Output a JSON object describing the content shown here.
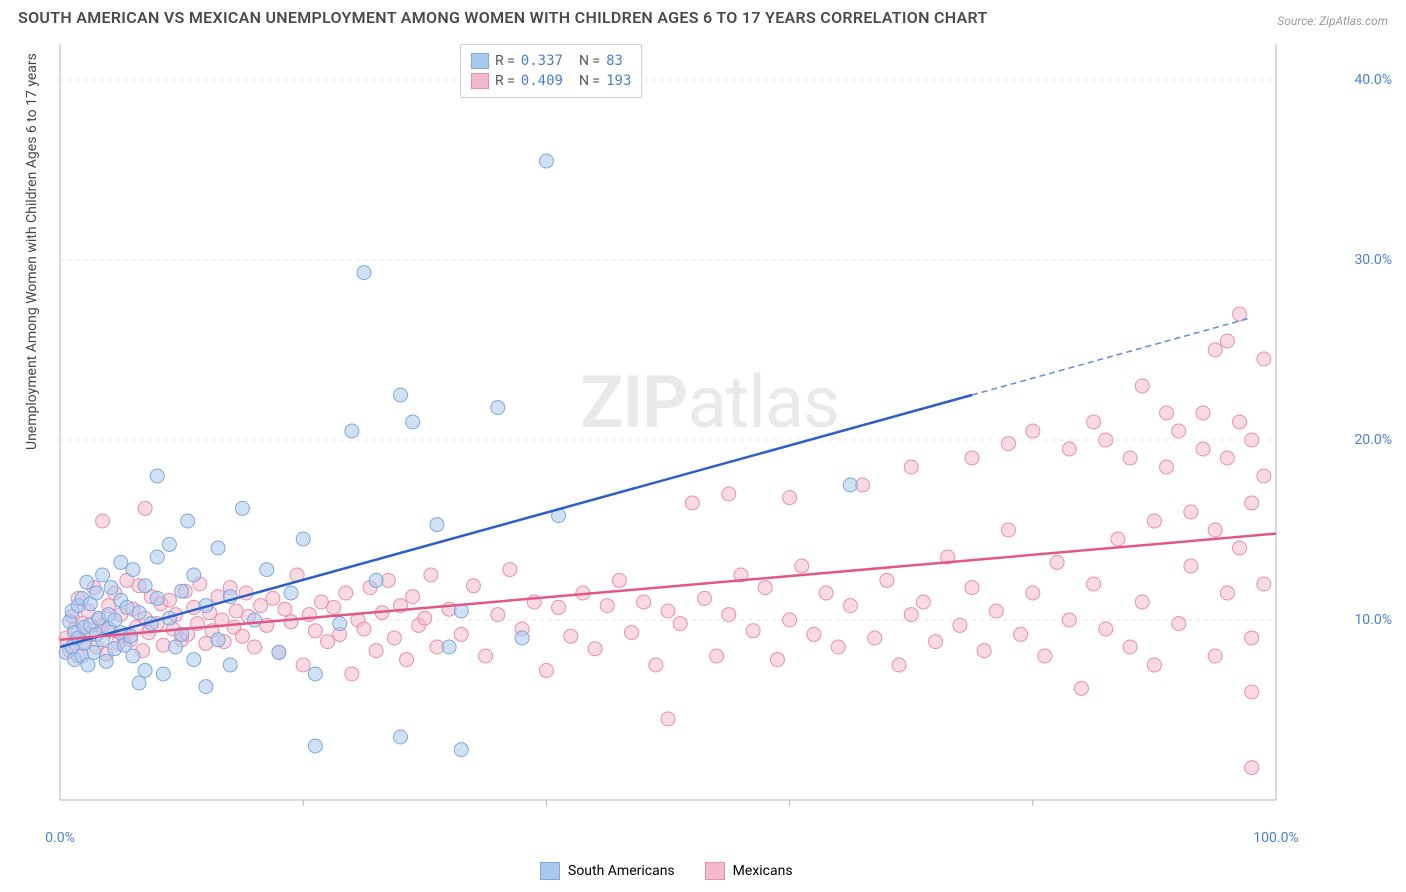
{
  "title": "SOUTH AMERICAN VS MEXICAN UNEMPLOYMENT AMONG WOMEN WITH CHILDREN AGES 6 TO 17 YEARS CORRELATION CHART",
  "source": "Source: ZipAtlas.com",
  "y_axis_label": "Unemployment Among Women with Children Ages 6 to 17 years",
  "watermark_a": "ZIP",
  "watermark_b": "atlas",
  "chart": {
    "type": "scatter",
    "xlim": [
      0,
      100
    ],
    "ylim": [
      0,
      42
    ],
    "x_ticks": [
      0,
      100
    ],
    "x_tick_labels": [
      "0.0%",
      "100.0%"
    ],
    "x_minor_ticks": [
      20,
      40,
      60,
      80
    ],
    "y_ticks": [
      10,
      20,
      30,
      40
    ],
    "y_tick_labels": [
      "10.0%",
      "20.0%",
      "30.0%",
      "40.0%"
    ],
    "background_color": "#ffffff",
    "grid_color": "#e5e5e5",
    "axis_color": "#b5b5b5",
    "tick_label_color": "#4a7fd6",
    "series": [
      {
        "name": "South Americans",
        "color_fill": "#a9c8ee",
        "color_stroke": "#7fa8dd",
        "marker_radius": 7,
        "fill_opacity": 0.55,
        "R": "0.337",
        "N": "83",
        "trend": {
          "x1": 0,
          "y1": 8.5,
          "x2": 75,
          "y2": 22.5,
          "color": "#2d5fc9",
          "width": 2.5
        },
        "trend_ext": {
          "x1": 75,
          "y1": 22.5,
          "x2": 98,
          "y2": 26.8,
          "color": "#5e8cd9"
        },
        "points": [
          [
            0.5,
            8.2
          ],
          [
            0.8,
            9.9
          ],
          [
            1,
            8.5
          ],
          [
            1,
            10.5
          ],
          [
            1.2,
            7.8
          ],
          [
            1.2,
            9.3
          ],
          [
            1.5,
            10.8
          ],
          [
            1.5,
            9.0
          ],
          [
            1.8,
            8.0
          ],
          [
            1.8,
            11.2
          ],
          [
            2,
            9.6
          ],
          [
            2,
            8.7
          ],
          [
            2.2,
            12.1
          ],
          [
            2.3,
            7.5
          ],
          [
            2.5,
            9.7
          ],
          [
            2.5,
            10.9
          ],
          [
            2.8,
            8.2
          ],
          [
            3,
            9.2
          ],
          [
            3,
            11.5
          ],
          [
            3.2,
            10.1
          ],
          [
            3.5,
            8.9
          ],
          [
            3.5,
            12.5
          ],
          [
            3.8,
            7.7
          ],
          [
            4,
            9.5
          ],
          [
            4,
            10.3
          ],
          [
            4.2,
            11.8
          ],
          [
            4.5,
            8.4
          ],
          [
            4.5,
            10.0
          ],
          [
            5,
            9.3
          ],
          [
            5,
            11.1
          ],
          [
            5,
            13.2
          ],
          [
            5.3,
            8.6
          ],
          [
            5.5,
            10.7
          ],
          [
            5.8,
            9.1
          ],
          [
            6,
            12.8
          ],
          [
            6,
            8.0
          ],
          [
            6.5,
            10.4
          ],
          [
            6.5,
            6.5
          ],
          [
            7,
            11.9
          ],
          [
            7,
            7.2
          ],
          [
            7.5,
            9.8
          ],
          [
            8,
            13.5
          ],
          [
            8,
            11.2
          ],
          [
            8,
            18.0
          ],
          [
            8.5,
            7.0
          ],
          [
            9,
            10.1
          ],
          [
            9,
            14.2
          ],
          [
            9.5,
            8.5
          ],
          [
            10,
            11.6
          ],
          [
            10,
            9.2
          ],
          [
            10.5,
            15.5
          ],
          [
            11,
            7.8
          ],
          [
            11,
            12.5
          ],
          [
            12,
            10.8
          ],
          [
            12,
            6.3
          ],
          [
            13,
            14.0
          ],
          [
            13,
            8.9
          ],
          [
            14,
            11.3
          ],
          [
            14,
            7.5
          ],
          [
            15,
            16.2
          ],
          [
            16,
            10.0
          ],
          [
            17,
            12.8
          ],
          [
            18,
            8.2
          ],
          [
            19,
            11.5
          ],
          [
            20,
            14.5
          ],
          [
            21,
            7.0
          ],
          [
            21,
            3.0
          ],
          [
            23,
            9.8
          ],
          [
            24,
            20.5
          ],
          [
            25,
            29.3
          ],
          [
            26,
            12.2
          ],
          [
            28,
            3.5
          ],
          [
            28,
            22.5
          ],
          [
            29,
            21.0
          ],
          [
            31,
            15.3
          ],
          [
            32,
            8.5
          ],
          [
            33,
            2.8
          ],
          [
            33,
            10.5
          ],
          [
            36,
            21.8
          ],
          [
            38,
            9.0
          ],
          [
            40,
            35.5
          ],
          [
            41,
            15.8
          ],
          [
            65,
            17.5
          ]
        ]
      },
      {
        "name": "Mexicans",
        "color_fill": "#f4b9ca",
        "color_stroke": "#e88fae",
        "marker_radius": 7,
        "fill_opacity": 0.55,
        "R": "0.409",
        "N": "193",
        "trend": {
          "x1": 0,
          "y1": 8.9,
          "x2": 100,
          "y2": 14.8,
          "color": "#e15788",
          "width": 2.5
        },
        "points": [
          [
            0.5,
            9.0
          ],
          [
            0.8,
            8.3
          ],
          [
            1,
            10.2
          ],
          [
            1.2,
            9.5
          ],
          [
            1.5,
            8.0
          ],
          [
            1.5,
            11.2
          ],
          [
            1.8,
            9.8
          ],
          [
            2,
            8.8
          ],
          [
            2.3,
            10.5
          ],
          [
            2.5,
            9.2
          ],
          [
            2.8,
            11.8
          ],
          [
            3,
            8.5
          ],
          [
            3.2,
            10.0
          ],
          [
            3.5,
            9.7
          ],
          [
            3.5,
            15.5
          ],
          [
            3.8,
            8.1
          ],
          [
            4,
            10.8
          ],
          [
            4.2,
            9.4
          ],
          [
            4.5,
            11.5
          ],
          [
            4.8,
            8.7
          ],
          [
            5,
            10.3
          ],
          [
            5.2,
            9.1
          ],
          [
            5.5,
            12.2
          ],
          [
            5.8,
            8.9
          ],
          [
            6,
            10.6
          ],
          [
            6.3,
            9.6
          ],
          [
            6.5,
            11.9
          ],
          [
            6.8,
            8.3
          ],
          [
            7,
            10.1
          ],
          [
            7,
            16.2
          ],
          [
            7.3,
            9.3
          ],
          [
            7.5,
            11.3
          ],
          [
            8,
            9.8
          ],
          [
            8.3,
            10.9
          ],
          [
            8.5,
            8.6
          ],
          [
            9,
            11.1
          ],
          [
            9.3,
            9.5
          ],
          [
            9.5,
            10.3
          ],
          [
            10,
            8.9
          ],
          [
            10.3,
            11.6
          ],
          [
            10.5,
            9.2
          ],
          [
            11,
            10.7
          ],
          [
            11.3,
            9.8
          ],
          [
            11.5,
            12.0
          ],
          [
            12,
            8.7
          ],
          [
            12.3,
            10.4
          ],
          [
            12.5,
            9.4
          ],
          [
            13,
            11.3
          ],
          [
            13.3,
            10.0
          ],
          [
            13.5,
            8.8
          ],
          [
            14,
            11.8
          ],
          [
            14.3,
            9.6
          ],
          [
            14.5,
            10.5
          ],
          [
            15,
            9.1
          ],
          [
            15.3,
            11.5
          ],
          [
            15.5,
            10.2
          ],
          [
            16,
            8.5
          ],
          [
            16.5,
            10.8
          ],
          [
            17,
            9.7
          ],
          [
            17.5,
            11.2
          ],
          [
            18,
            8.2
          ],
          [
            18.5,
            10.6
          ],
          [
            19,
            9.9
          ],
          [
            19.5,
            12.5
          ],
          [
            20,
            7.5
          ],
          [
            20.5,
            10.3
          ],
          [
            21,
            9.4
          ],
          [
            21.5,
            11.0
          ],
          [
            22,
            8.8
          ],
          [
            22.5,
            10.7
          ],
          [
            23,
            9.2
          ],
          [
            23.5,
            11.5
          ],
          [
            24,
            7.0
          ],
          [
            24.5,
            10.0
          ],
          [
            25,
            9.5
          ],
          [
            25.5,
            11.8
          ],
          [
            26,
            8.3
          ],
          [
            26.5,
            10.4
          ],
          [
            27,
            12.2
          ],
          [
            27.5,
            9.0
          ],
          [
            28,
            10.8
          ],
          [
            28.5,
            7.8
          ],
          [
            29,
            11.3
          ],
          [
            29.5,
            9.7
          ],
          [
            30,
            10.1
          ],
          [
            30.5,
            12.5
          ],
          [
            31,
            8.5
          ],
          [
            32,
            10.6
          ],
          [
            33,
            9.2
          ],
          [
            34,
            11.9
          ],
          [
            35,
            8.0
          ],
          [
            36,
            10.3
          ],
          [
            37,
            12.8
          ],
          [
            38,
            9.5
          ],
          [
            39,
            11.0
          ],
          [
            40,
            7.2
          ],
          [
            41,
            10.7
          ],
          [
            42,
            9.1
          ],
          [
            43,
            11.5
          ],
          [
            44,
            8.4
          ],
          [
            45,
            10.8
          ],
          [
            46,
            12.2
          ],
          [
            47,
            9.3
          ],
          [
            48,
            11.0
          ],
          [
            49,
            7.5
          ],
          [
            50,
            10.5
          ],
          [
            50,
            4.5
          ],
          [
            51,
            9.8
          ],
          [
            52,
            16.5
          ],
          [
            53,
            11.2
          ],
          [
            54,
            8.0
          ],
          [
            55,
            10.3
          ],
          [
            55,
            17.0
          ],
          [
            56,
            12.5
          ],
          [
            57,
            9.4
          ],
          [
            58,
            11.8
          ],
          [
            59,
            7.8
          ],
          [
            60,
            10.0
          ],
          [
            60,
            16.8
          ],
          [
            61,
            13.0
          ],
          [
            62,
            9.2
          ],
          [
            63,
            11.5
          ],
          [
            64,
            8.5
          ],
          [
            65,
            10.8
          ],
          [
            66,
            17.5
          ],
          [
            67,
            9.0
          ],
          [
            68,
            12.2
          ],
          [
            69,
            7.5
          ],
          [
            70,
            10.3
          ],
          [
            70,
            18.5
          ],
          [
            71,
            11.0
          ],
          [
            72,
            8.8
          ],
          [
            73,
            13.5
          ],
          [
            74,
            9.7
          ],
          [
            75,
            11.8
          ],
          [
            75,
            19.0
          ],
          [
            76,
            8.3
          ],
          [
            77,
            10.5
          ],
          [
            78,
            15.0
          ],
          [
            78,
            19.8
          ],
          [
            79,
            9.2
          ],
          [
            80,
            11.5
          ],
          [
            80,
            20.5
          ],
          [
            81,
            8.0
          ],
          [
            82,
            13.2
          ],
          [
            83,
            10.0
          ],
          [
            83,
            19.5
          ],
          [
            84,
            6.2
          ],
          [
            85,
            12.0
          ],
          [
            85,
            21.0
          ],
          [
            86,
            9.5
          ],
          [
            86,
            20.0
          ],
          [
            87,
            14.5
          ],
          [
            88,
            8.5
          ],
          [
            88,
            19.0
          ],
          [
            89,
            11.0
          ],
          [
            89,
            23.0
          ],
          [
            90,
            7.5
          ],
          [
            90,
            15.5
          ],
          [
            91,
            18.5
          ],
          [
            91,
            21.5
          ],
          [
            92,
            9.8
          ],
          [
            92,
            20.5
          ],
          [
            93,
            13.0
          ],
          [
            93,
            16.0
          ],
          [
            94,
            19.5
          ],
          [
            94,
            21.5
          ],
          [
            95,
            8.0
          ],
          [
            95,
            15.0
          ],
          [
            95,
            25.0
          ],
          [
            96,
            11.5
          ],
          [
            96,
            19.0
          ],
          [
            96,
            25.5
          ],
          [
            97,
            14.0
          ],
          [
            97,
            21.0
          ],
          [
            97,
            27.0
          ],
          [
            98,
            9.0
          ],
          [
            98,
            16.5
          ],
          [
            98,
            20.0
          ],
          [
            98,
            1.8
          ],
          [
            98,
            6.0
          ],
          [
            99,
            12.0
          ],
          [
            99,
            18.0
          ],
          [
            99,
            24.5
          ]
        ]
      }
    ]
  },
  "legend_bottom": [
    {
      "label": "South Americans",
      "fill": "#a9c8ee",
      "stroke": "#7fa8dd"
    },
    {
      "label": "Mexicans",
      "fill": "#f4b9ca",
      "stroke": "#e88fae"
    }
  ]
}
